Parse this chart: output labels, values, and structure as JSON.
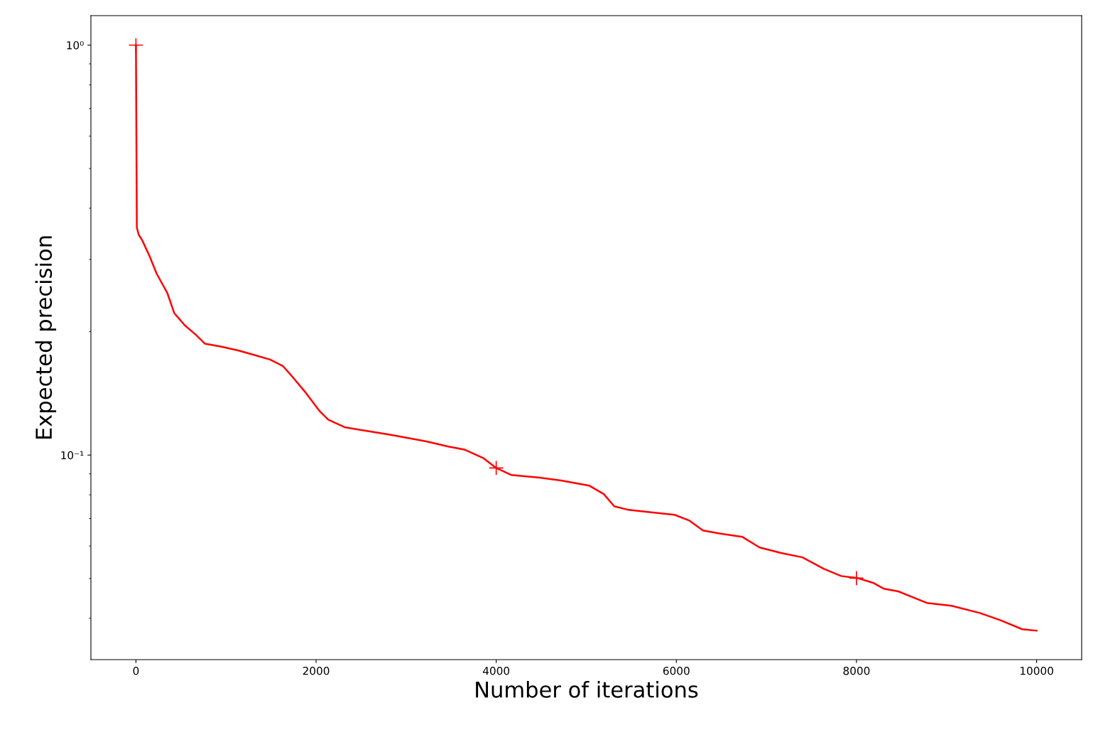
{
  "chart_data": {
    "type": "line",
    "xlabel": "Number of iterations",
    "ylabel": "Expected precision",
    "log": "y",
    "grid": false,
    "xlim": [
      -500,
      10500
    ],
    "xticks": [
      0,
      2000,
      4000,
      6000,
      8000,
      10000
    ],
    "ylim": [
      0.0317,
      1.18
    ],
    "yticks": [
      {
        "value": 1,
        "label": "10⁰"
      },
      {
        "value": 0.1,
        "label": "10⁻¹"
      }
    ],
    "series": [
      {
        "color": "#ff0000",
        "marker": "none",
        "x": [
          0,
          10,
          30,
          70,
          150,
          230,
          350,
          425,
          545,
          660,
          765,
          940,
          1135,
          1330,
          1490,
          1630,
          1740,
          1885,
          2040,
          2135,
          2315,
          2515,
          2830,
          3225,
          3460,
          3655,
          3855,
          4000,
          4170,
          4485,
          4720,
          5035,
          5195,
          5310,
          5470,
          5665,
          5980,
          6140,
          6295,
          6455,
          6730,
          6925,
          7165,
          7400,
          7635,
          7830,
          8015,
          8185,
          8305,
          8465,
          8780,
          9055,
          9370,
          9605,
          9840,
          10000
        ],
        "values": [
          1.0,
          0.359,
          0.345,
          0.334,
          0.306,
          0.277,
          0.248,
          0.222,
          0.207,
          0.197,
          0.187,
          0.184,
          0.18,
          0.175,
          0.171,
          0.165,
          0.155,
          0.142,
          0.128,
          0.122,
          0.117,
          0.115,
          0.112,
          0.108,
          0.105,
          0.103,
          0.0984,
          0.093,
          0.0894,
          0.0881,
          0.0867,
          0.0842,
          0.0803,
          0.075,
          0.0735,
          0.0727,
          0.0715,
          0.0693,
          0.0655,
          0.0645,
          0.0632,
          0.0595,
          0.0577,
          0.0563,
          0.0528,
          0.0507,
          0.0501,
          0.0488,
          0.0472,
          0.0465,
          0.0436,
          0.0429,
          0.0412,
          0.0395,
          0.0376,
          0.0373
        ]
      },
      {
        "type": "scatter",
        "color": "#ff0000",
        "marker": "cross",
        "x": [
          0,
          4000,
          8000
        ],
        "values": [
          1.0,
          0.093,
          0.0501
        ]
      }
    ]
  }
}
